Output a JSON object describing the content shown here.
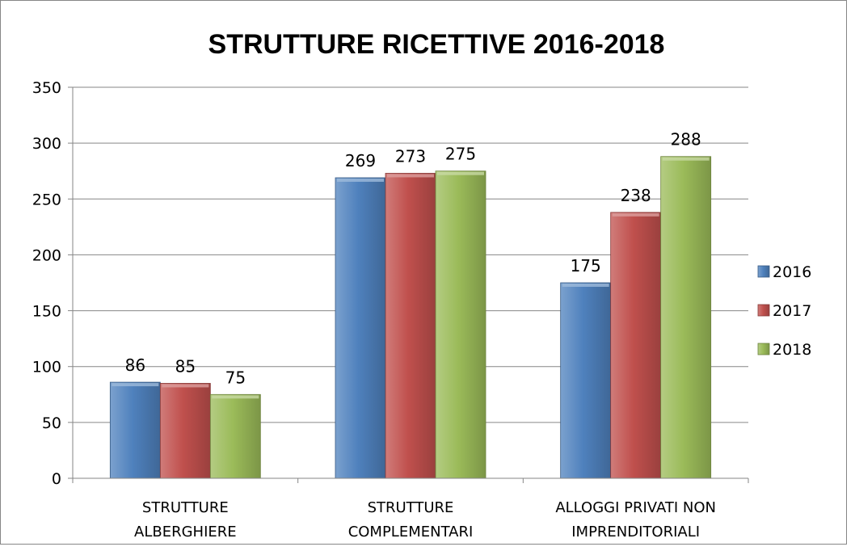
{
  "chart_data": {
    "type": "bar",
    "title": "STRUTTURE RICETTIVE 2016-2018",
    "xlabel": "",
    "ylabel": "",
    "ylim": [
      0,
      350
    ],
    "yticks": [
      0,
      50,
      100,
      150,
      200,
      250,
      300,
      350
    ],
    "grid": true,
    "legend_position": "right",
    "categories": [
      [
        "STRUTTURE",
        "ALBERGHIERE"
      ],
      [
        "STRUTTURE",
        "COMPLEMENTARI"
      ],
      [
        "ALLOGGI PRIVATI NON",
        "IMPRENDITORIALI"
      ]
    ],
    "series": [
      {
        "name": "2016",
        "color": "#4f81bd",
        "values": [
          86,
          269,
          175
        ]
      },
      {
        "name": "2017",
        "color": "#c0504d",
        "values": [
          85,
          273,
          238
        ]
      },
      {
        "name": "2018",
        "color": "#9bbb59",
        "values": [
          75,
          275,
          288
        ]
      }
    ]
  }
}
